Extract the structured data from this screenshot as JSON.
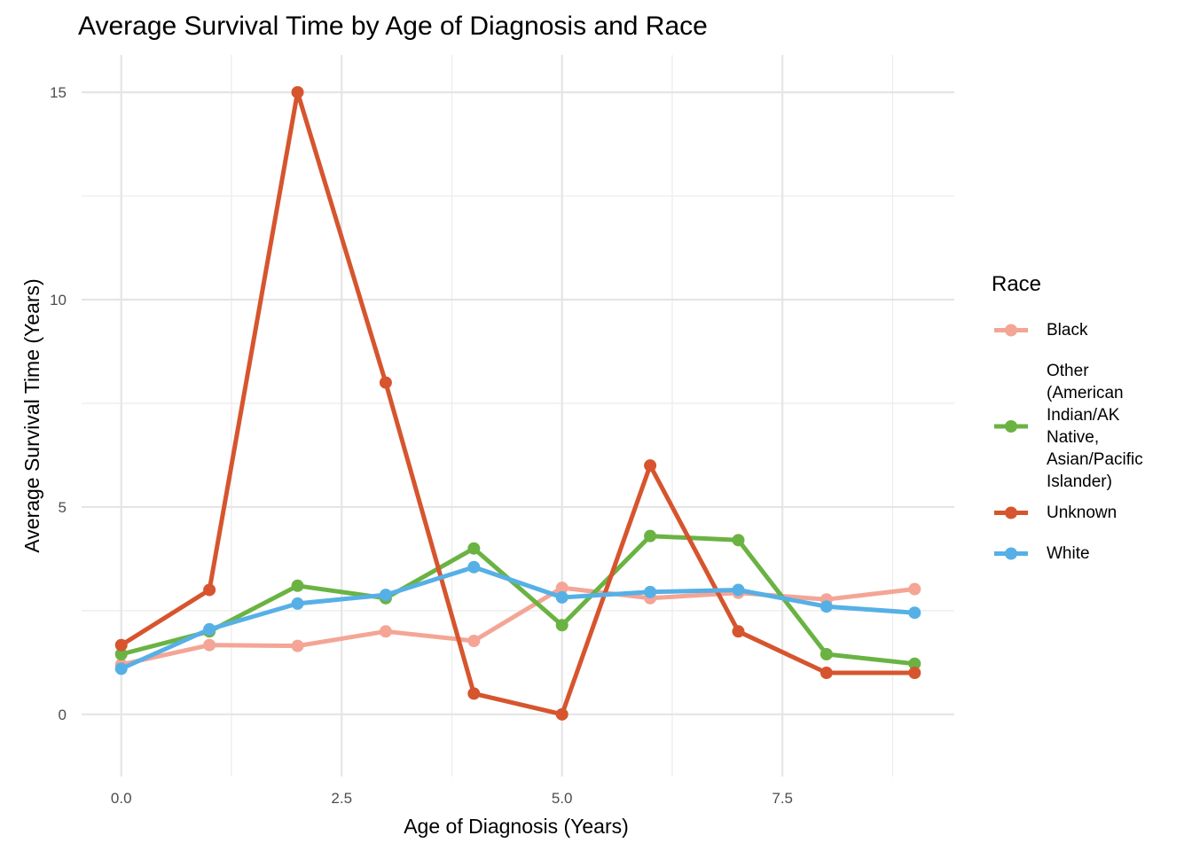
{
  "chart_data": {
    "type": "line",
    "title": "Average Survival Time by Age of Diagnosis and Race",
    "xlabel": "Age of Diagnosis (Years)",
    "ylabel": "Average Survival Time (Years)",
    "xlim": [
      -0.45,
      9.45
    ],
    "ylim": [
      -1.5,
      15.9
    ],
    "x_ticks": [
      0,
      2.5,
      5,
      7.5
    ],
    "x_tick_labels": [
      "0.0",
      "2.5",
      "5.0",
      "7.5"
    ],
    "y_ticks": [
      0,
      5,
      10,
      15
    ],
    "y_tick_labels": [
      "0",
      "5",
      "10",
      "15"
    ],
    "grid": true,
    "legend": {
      "title": "Race",
      "position": "right"
    },
    "series": [
      {
        "name": "Black",
        "name_lines": [
          "Black"
        ],
        "color": "#F4A596",
        "x": [
          0,
          1,
          2,
          3,
          4,
          5,
          6,
          7,
          8,
          9
        ],
        "values": [
          1.2,
          1.67,
          1.65,
          2.0,
          1.77,
          3.05,
          2.8,
          2.93,
          2.77,
          3.02
        ]
      },
      {
        "name": "Other (American Indian/AK Native, Asian/Pacific Islander)",
        "name_lines": [
          "Other",
          "(American",
          "Indian/AK",
          "Native,",
          "Asian/Pacific",
          "Islander)"
        ],
        "color": "#6AB343",
        "x": [
          0,
          1,
          2,
          3,
          4,
          5,
          6,
          7,
          8,
          9
        ],
        "values": [
          1.45,
          2.0,
          3.1,
          2.8,
          4.0,
          2.15,
          4.3,
          4.2,
          1.45,
          1.22
        ]
      },
      {
        "name": "Unknown",
        "name_lines": [
          "Unknown"
        ],
        "color": "#D6552E",
        "x": [
          0,
          1,
          2,
          3,
          4,
          5,
          6,
          7,
          8,
          9
        ],
        "values": [
          1.67,
          3.0,
          15.0,
          8.0,
          0.5,
          0.0,
          6.0,
          2.0,
          1.0,
          1.0
        ]
      },
      {
        "name": "White",
        "name_lines": [
          "White"
        ],
        "color": "#56B0E6",
        "x": [
          0,
          1,
          2,
          3,
          4,
          5,
          6,
          7,
          8,
          9
        ],
        "values": [
          1.1,
          2.05,
          2.67,
          2.88,
          3.55,
          2.82,
          2.95,
          3.0,
          2.6,
          2.45
        ]
      }
    ]
  }
}
